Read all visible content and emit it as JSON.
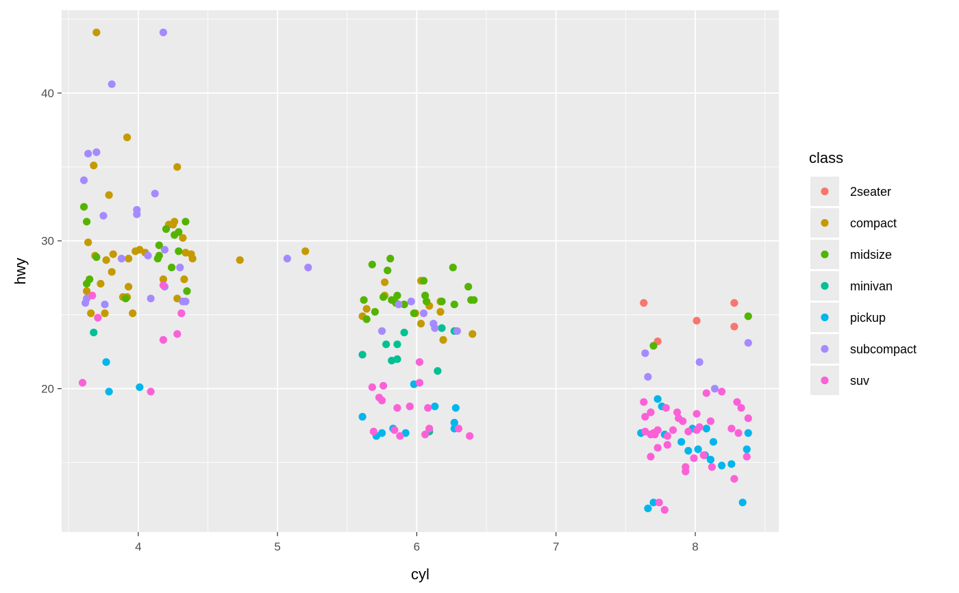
{
  "chart_data": {
    "type": "scatter",
    "title": "",
    "xlabel": "cyl",
    "ylabel": "hwy",
    "xlim": [
      3.45,
      8.6
    ],
    "ylim": [
      10.3,
      45.6
    ],
    "x_ticks": [
      4,
      5,
      6,
      7,
      8
    ],
    "x_tick_labels": [
      "4",
      "5",
      "6",
      "7",
      "8"
    ],
    "y_ticks": [
      20,
      30,
      40
    ],
    "y_tick_labels": [
      "20",
      "30",
      "40"
    ],
    "grid": true,
    "background": "#ebebeb",
    "legend": {
      "title": "class",
      "placement": "right"
    },
    "series": [
      {
        "name": "2seater",
        "color": "#F8766D",
        "points": [
          [
            7.63,
            25.8
          ],
          [
            7.73,
            23.2
          ],
          [
            8.01,
            24.6
          ],
          [
            8.28,
            25.8
          ],
          [
            8.28,
            24.2
          ]
        ]
      },
      {
        "name": "compact",
        "color": "#C49A00",
        "points": [
          [
            3.7,
            44.1
          ],
          [
            3.92,
            37
          ],
          [
            4.28,
            35
          ],
          [
            3.68,
            35.1
          ],
          [
            3.79,
            33.1
          ],
          [
            4.26,
            31.3
          ],
          [
            4.22,
            31.1
          ],
          [
            4.25,
            31.1
          ],
          [
            4.32,
            30.2
          ],
          [
            3.64,
            29.9
          ],
          [
            3.82,
            29.1
          ],
          [
            3.69,
            29
          ],
          [
            3.98,
            29.3
          ],
          [
            4.01,
            29.4
          ],
          [
            4.05,
            29.2
          ],
          [
            4.34,
            29.2
          ],
          [
            4.38,
            29.1
          ],
          [
            4.39,
            28.8
          ],
          [
            3.93,
            28.8
          ],
          [
            3.77,
            28.7
          ],
          [
            4.73,
            28.7
          ],
          [
            5.2,
            29.3
          ],
          [
            3.81,
            27.9
          ],
          [
            4.18,
            27.4
          ],
          [
            4.33,
            27.4
          ],
          [
            3.73,
            27.1
          ],
          [
            3.93,
            26.9
          ],
          [
            3.63,
            26.6
          ],
          [
            3.92,
            26.2
          ],
          [
            3.89,
            26.2
          ],
          [
            4.28,
            26.1
          ],
          [
            3.66,
            25.1
          ],
          [
            3.76,
            25.1
          ],
          [
            3.96,
            25.1
          ],
          [
            6.03,
            27.3
          ],
          [
            5.77,
            27.2
          ],
          [
            5.77,
            26.3
          ],
          [
            6.09,
            25.6
          ],
          [
            6.17,
            25.9
          ],
          [
            5.64,
            25.4
          ],
          [
            5.61,
            24.9
          ],
          [
            5.99,
            25.1
          ],
          [
            6.03,
            24.4
          ],
          [
            6.17,
            25.2
          ],
          [
            6.19,
            23.3
          ],
          [
            6.4,
            23.7
          ]
        ]
      },
      {
        "name": "midsize",
        "color": "#53B400",
        "points": [
          [
            3.61,
            32.3
          ],
          [
            3.63,
            31.3
          ],
          [
            4.34,
            31.3
          ],
          [
            4.2,
            30.8
          ],
          [
            4.29,
            30.6
          ],
          [
            4.26,
            30.4
          ],
          [
            4.15,
            29.7
          ],
          [
            4.29,
            29.3
          ],
          [
            4.15,
            29
          ],
          [
            4.14,
            28.8
          ],
          [
            3.7,
            28.9
          ],
          [
            4.24,
            28.2
          ],
          [
            3.65,
            27.4
          ],
          [
            3.63,
            27.1
          ],
          [
            4.35,
            26.6
          ],
          [
            3.91,
            26.1
          ],
          [
            5.68,
            28.4
          ],
          [
            5.79,
            28
          ],
          [
            5.81,
            28.8
          ],
          [
            6.26,
            28.2
          ],
          [
            6.05,
            27.3
          ],
          [
            6.37,
            26.9
          ],
          [
            5.86,
            26.3
          ],
          [
            5.76,
            26.2
          ],
          [
            6.06,
            26.3
          ],
          [
            6.07,
            25.9
          ],
          [
            5.62,
            26
          ],
          [
            5.82,
            26
          ],
          [
            5.85,
            25.8
          ],
          [
            5.91,
            25.7
          ],
          [
            6.18,
            25.9
          ],
          [
            6.27,
            25.7
          ],
          [
            6.39,
            26
          ],
          [
            6.41,
            26
          ],
          [
            5.7,
            25.2
          ],
          [
            5.98,
            25.1
          ],
          [
            5.64,
            24.7
          ],
          [
            7.7,
            22.9
          ],
          [
            8.38,
            24.9
          ]
        ]
      },
      {
        "name": "minivan",
        "color": "#00C094",
        "points": [
          [
            3.68,
            23.8
          ],
          [
            5.61,
            22.3
          ],
          [
            5.78,
            23
          ],
          [
            5.86,
            23
          ],
          [
            5.91,
            23.8
          ],
          [
            5.82,
            21.9
          ],
          [
            5.86,
            22
          ],
          [
            6.15,
            21.2
          ],
          [
            6.18,
            24.1
          ],
          [
            6.27,
            23.9
          ],
          [
            6.09,
            17.1
          ]
        ]
      },
      {
        "name": "pickup",
        "color": "#00B6EB",
        "points": [
          [
            3.77,
            21.8
          ],
          [
            3.79,
            19.8
          ],
          [
            4.01,
            20.1
          ],
          [
            5.61,
            18.1
          ],
          [
            5.83,
            17.3
          ],
          [
            5.75,
            17
          ],
          [
            5.71,
            16.8
          ],
          [
            5.92,
            17
          ],
          [
            5.98,
            20.3
          ],
          [
            6.13,
            18.8
          ],
          [
            6.27,
            17.3
          ],
          [
            6.27,
            17.7
          ],
          [
            6.28,
            18.7
          ],
          [
            7.61,
            17
          ],
          [
            7.66,
            11.9
          ],
          [
            7.7,
            12.3
          ],
          [
            7.73,
            19.3
          ],
          [
            7.76,
            18.8
          ],
          [
            7.78,
            16.9
          ],
          [
            7.9,
            16.4
          ],
          [
            7.95,
            15.8
          ],
          [
            7.98,
            17.3
          ],
          [
            8.02,
            15.9
          ],
          [
            8.07,
            15.5
          ],
          [
            8.08,
            17.3
          ],
          [
            8.11,
            15.2
          ],
          [
            8.13,
            16.4
          ],
          [
            8.19,
            14.8
          ],
          [
            8.26,
            14.9
          ],
          [
            8.34,
            12.3
          ],
          [
            8.37,
            15.9
          ],
          [
            8.38,
            17
          ]
        ]
      },
      {
        "name": "subcompact",
        "color": "#A58AFF",
        "points": [
          [
            4.18,
            44.1
          ],
          [
            3.81,
            40.6
          ],
          [
            3.64,
            35.9
          ],
          [
            3.7,
            36
          ],
          [
            3.61,
            34.1
          ],
          [
            4.12,
            33.2
          ],
          [
            3.99,
            32.1
          ],
          [
            3.99,
            31.8
          ],
          [
            3.75,
            31.7
          ],
          [
            4.19,
            29.4
          ],
          [
            4.07,
            29
          ],
          [
            3.88,
            28.8
          ],
          [
            4.3,
            28.2
          ],
          [
            3.63,
            26.1
          ],
          [
            3.62,
            25.8
          ],
          [
            3.76,
            25.7
          ],
          [
            4.09,
            26.1
          ],
          [
            4.32,
            25.9
          ],
          [
            4.34,
            25.9
          ],
          [
            4.19,
            26.9
          ],
          [
            5.07,
            28.8
          ],
          [
            5.22,
            28.2
          ],
          [
            5.96,
            25.9
          ],
          [
            6.05,
            25.1
          ],
          [
            5.87,
            25.7
          ],
          [
            5.75,
            23.9
          ],
          [
            6.12,
            24.4
          ],
          [
            6.13,
            24.1
          ],
          [
            6.29,
            23.9
          ],
          [
            7.64,
            22.4
          ],
          [
            7.66,
            20.8
          ],
          [
            8.03,
            21.8
          ],
          [
            8.14,
            20
          ],
          [
            8.38,
            23.1
          ]
        ]
      },
      {
        "name": "suv",
        "color": "#FB61D7",
        "points": [
          [
            3.6,
            20.4
          ],
          [
            3.67,
            26.3
          ],
          [
            3.71,
            24.8
          ],
          [
            4.09,
            19.8
          ],
          [
            4.18,
            23.3
          ],
          [
            4.28,
            23.7
          ],
          [
            4.31,
            25.1
          ],
          [
            4.18,
            27
          ],
          [
            5.68,
            20.1
          ],
          [
            5.76,
            20.2
          ],
          [
            5.73,
            19.4
          ],
          [
            5.75,
            19.2
          ],
          [
            5.95,
            18.8
          ],
          [
            5.86,
            18.7
          ],
          [
            6.08,
            18.7
          ],
          [
            6.02,
            20.4
          ],
          [
            6.02,
            21.8
          ],
          [
            5.69,
            17.1
          ],
          [
            5.84,
            17.2
          ],
          [
            5.88,
            16.8
          ],
          [
            6.06,
            16.9
          ],
          [
            6.09,
            17.3
          ],
          [
            6.3,
            17.3
          ],
          [
            6.38,
            16.8
          ],
          [
            7.63,
            19.1
          ],
          [
            7.64,
            18.1
          ],
          [
            7.68,
            18.4
          ],
          [
            7.64,
            17.1
          ],
          [
            7.68,
            16.9
          ],
          [
            7.7,
            17
          ],
          [
            7.71,
            16.9
          ],
          [
            7.73,
            17.2
          ],
          [
            7.68,
            15.4
          ],
          [
            7.73,
            16
          ],
          [
            7.79,
            18.7
          ],
          [
            7.8,
            16.8
          ],
          [
            7.8,
            16.2
          ],
          [
            7.84,
            17.2
          ],
          [
            7.87,
            18.4
          ],
          [
            7.88,
            18
          ],
          [
            7.91,
            17.8
          ],
          [
            7.93,
            14.7
          ],
          [
            7.93,
            14.4
          ],
          [
            7.95,
            17.1
          ],
          [
            7.99,
            15.3
          ],
          [
            8.01,
            18.3
          ],
          [
            8.01,
            17.2
          ],
          [
            8.03,
            17.4
          ],
          [
            8.06,
            15.5
          ],
          [
            8.08,
            19.7
          ],
          [
            8.11,
            17.8
          ],
          [
            8.12,
            14.7
          ],
          [
            8.19,
            19.8
          ],
          [
            8.26,
            17.3
          ],
          [
            8.28,
            13.9
          ],
          [
            8.3,
            19.1
          ],
          [
            8.31,
            17
          ],
          [
            8.33,
            18.7
          ],
          [
            8.37,
            15.4
          ],
          [
            8.38,
            18
          ],
          [
            7.74,
            12.3
          ],
          [
            7.78,
            11.8
          ]
        ]
      }
    ]
  }
}
